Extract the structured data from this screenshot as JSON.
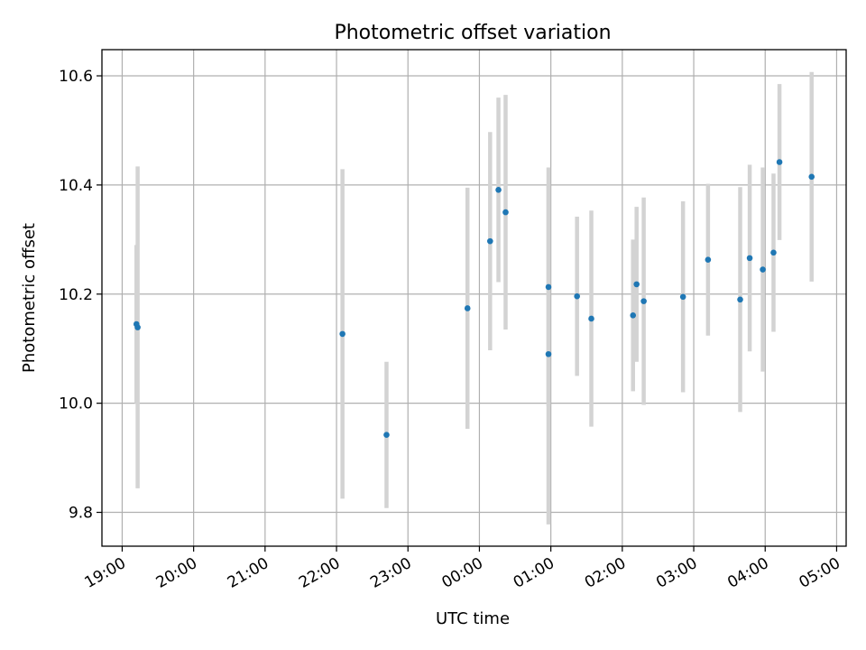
{
  "chart_data": {
    "type": "scatter",
    "title": "Photometric offset variation",
    "xlabel": "UTC time",
    "ylabel": "Photometric offset",
    "x_ticks": [
      "19:00",
      "20:00",
      "21:00",
      "22:00",
      "23:00",
      "00:00",
      "01:00",
      "02:00",
      "03:00",
      "04:00",
      "05:00"
    ],
    "y_ticks": [
      "9.8",
      "10.0",
      "10.2",
      "10.4",
      "10.6"
    ],
    "y_tick_values": [
      9.8,
      10.0,
      10.2,
      10.4,
      10.6
    ],
    "xlim": [
      "18:43",
      "05:08"
    ],
    "ylim": [
      9.738,
      10.648
    ],
    "grid": true,
    "marker_color": "#1f77b4",
    "errorbar_color": "#d3d3d3",
    "series": [
      {
        "points": [
          {
            "x": "19:12",
            "y": 10.145,
            "yerr": 0.145
          },
          {
            "x": "19:13",
            "y": 10.139,
            "yerr": 0.295
          },
          {
            "x": "22:05",
            "y": 10.127,
            "yerr": 0.302
          },
          {
            "x": "22:42",
            "y": 9.942,
            "yerr": 0.134
          },
          {
            "x": "23:50",
            "y": 10.174,
            "yerr": 0.221
          },
          {
            "x": "00:09",
            "y": 10.297,
            "yerr": 0.2
          },
          {
            "x": "00:16",
            "y": 10.391,
            "yerr": 0.169
          },
          {
            "x": "00:22",
            "y": 10.35,
            "yerr": 0.215
          },
          {
            "x": "00:58",
            "y": 10.213,
            "yerr": 0.219
          },
          {
            "x": "00:58",
            "y": 10.09,
            "yerr": 0.312
          },
          {
            "x": "01:22",
            "y": 10.196,
            "yerr": 0.146
          },
          {
            "x": "01:34",
            "y": 10.155,
            "yerr": 0.198
          },
          {
            "x": "02:09",
            "y": 10.161,
            "yerr": 0.139
          },
          {
            "x": "02:12",
            "y": 10.218,
            "yerr": 0.142
          },
          {
            "x": "02:18",
            "y": 10.187,
            "yerr": 0.19
          },
          {
            "x": "02:51",
            "y": 10.195,
            "yerr": 0.175
          },
          {
            "x": "03:12",
            "y": 10.263,
            "yerr": 0.139
          },
          {
            "x": "03:39",
            "y": 10.19,
            "yerr": 0.206
          },
          {
            "x": "03:47",
            "y": 10.266,
            "yerr": 0.171
          },
          {
            "x": "03:58",
            "y": 10.245,
            "yerr": 0.187
          },
          {
            "x": "04:07",
            "y": 10.276,
            "yerr": 0.145
          },
          {
            "x": "04:12",
            "y": 10.442,
            "yerr": 0.143
          },
          {
            "x": "04:39",
            "y": 10.415,
            "yerr": 0.192
          }
        ]
      }
    ]
  }
}
